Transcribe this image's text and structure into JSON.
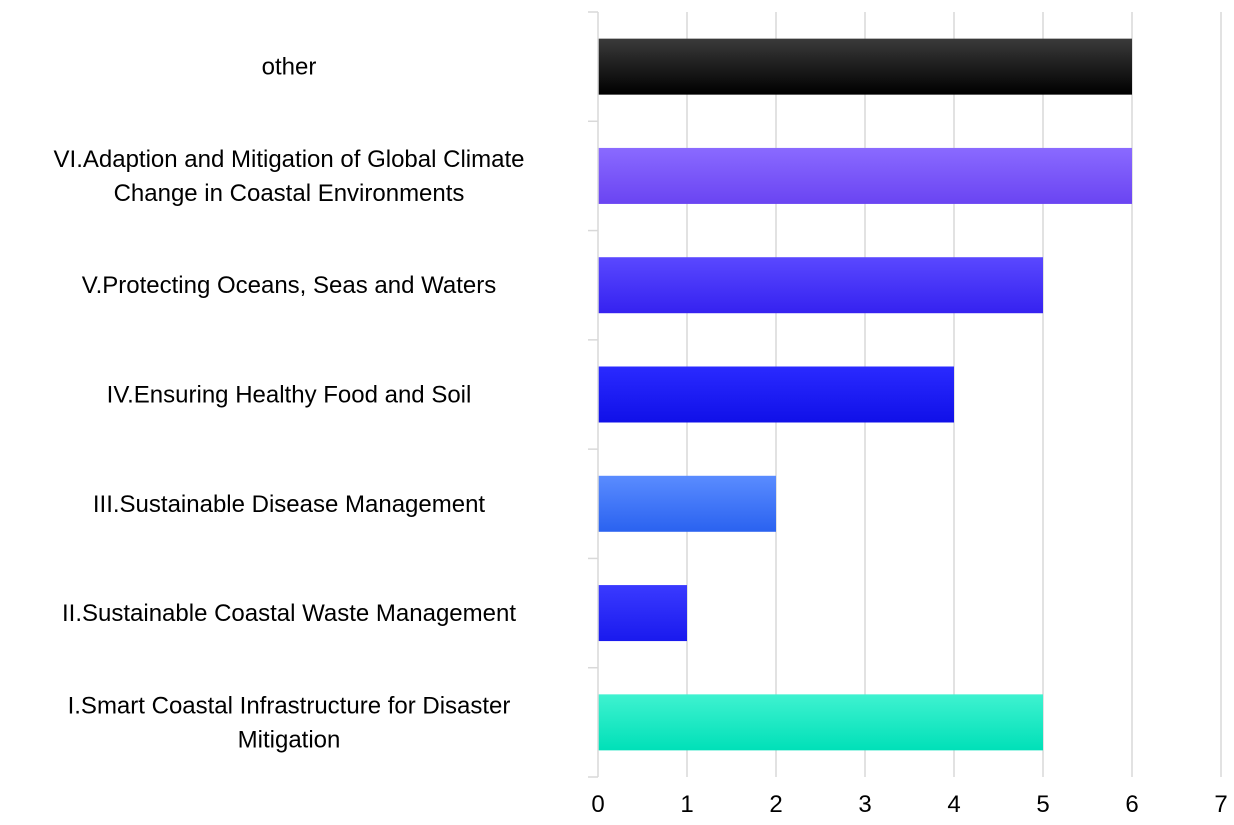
{
  "chart_data": {
    "type": "bar",
    "orientation": "horizontal",
    "title": "",
    "xlabel": "",
    "ylabel": "",
    "xlim": [
      0,
      7
    ],
    "x_ticks": [
      "0",
      "1",
      "2",
      "3",
      "4",
      "5",
      "6",
      "7"
    ],
    "grid": true,
    "legend": "none",
    "categories": [
      "I.Smart Coastal Infrastructure for Disaster Mitigation",
      "II.Sustainable Coastal Waste Management",
      "III.Sustainable Disease Management",
      "IV.Ensuring Healthy Food and Soil",
      "V.Protecting Oceans, Seas and Waters",
      "VI.Adaption and Mitigation of Global Climate Change in Coastal Environments",
      "other"
    ],
    "category_lines": [
      [
        "I.Smart Coastal Infrastructure for Disaster",
        "Mitigation"
      ],
      [
        "II.Sustainable Coastal Waste Management"
      ],
      [
        "III.Sustainable Disease Management"
      ],
      [
        "IV.Ensuring Healthy Food and Soil"
      ],
      [
        "V.Protecting Oceans, Seas and Waters"
      ],
      [
        "VI.Adaption and Mitigation of Global Climate",
        "Change in Coastal Environments"
      ],
      [
        "other"
      ]
    ],
    "values": [
      5,
      1,
      2,
      4,
      5,
      6,
      6
    ],
    "colors": [
      [
        "#3ff2d0",
        "#00e0b8"
      ],
      [
        "#3a3aff",
        "#1a1aee"
      ],
      [
        "#5a8cff",
        "#2a62f0"
      ],
      [
        "#2a2aff",
        "#1010e8"
      ],
      [
        "#5a48ff",
        "#3522f0"
      ],
      [
        "#8a6aff",
        "#6a44f2"
      ],
      [
        "#3a3a3a",
        "#000000"
      ]
    ]
  }
}
